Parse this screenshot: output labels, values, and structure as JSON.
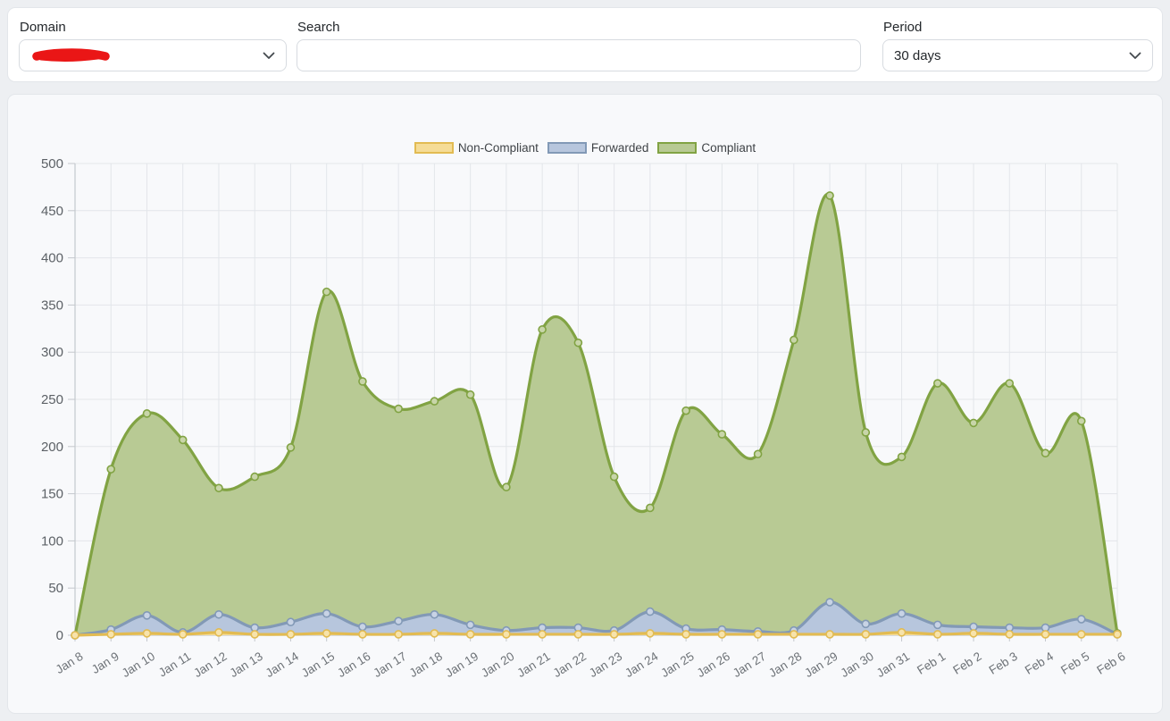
{
  "filters": {
    "domain": {
      "label": "Domain",
      "value": "",
      "redacted": true
    },
    "search": {
      "label": "Search",
      "value": "",
      "placeholder": ""
    },
    "period": {
      "label": "Period",
      "value": "30 days"
    }
  },
  "chart_data": {
    "type": "area",
    "title": "",
    "xlabel": "",
    "ylabel": "",
    "ylim": [
      0,
      500
    ],
    "ytick_step": 50,
    "grid": true,
    "legend_position": "top-center",
    "x": [
      "Jan 8",
      "Jan 9",
      "Jan 10",
      "Jan 11",
      "Jan 12",
      "Jan 13",
      "Jan 14",
      "Jan 15",
      "Jan 16",
      "Jan 17",
      "Jan 18",
      "Jan 19",
      "Jan 20",
      "Jan 21",
      "Jan 22",
      "Jan 23",
      "Jan 24",
      "Jan 25",
      "Jan 26",
      "Jan 27",
      "Jan 28",
      "Jan 29",
      "Jan 30",
      "Jan 31",
      "Feb 1",
      "Feb 2",
      "Feb 3",
      "Feb 4",
      "Feb 5",
      "Feb 6"
    ],
    "series": [
      {
        "name": "Non-Compliant",
        "line_color": "#e2bb52",
        "fill_color": "#f5dc96",
        "marker_fill": "#f7e3ab",
        "values": [
          0,
          1,
          2,
          1,
          3,
          1,
          1,
          2,
          1,
          1,
          2,
          1,
          1,
          1,
          1,
          1,
          2,
          1,
          1,
          1,
          1,
          1,
          1,
          3,
          1,
          2,
          1,
          1,
          1,
          1
        ]
      },
      {
        "name": "Forwarded",
        "line_color": "#8299b6",
        "fill_color": "#b7c6dd",
        "marker_fill": "#c8d3e5",
        "values": [
          0,
          6,
          21,
          3,
          22,
          8,
          14,
          23,
          9,
          15,
          22,
          11,
          5,
          8,
          8,
          5,
          25,
          7,
          6,
          4,
          5,
          35,
          12,
          23,
          11,
          9,
          8,
          8,
          17,
          1
        ]
      },
      {
        "name": "Compliant",
        "line_color": "#81a343",
        "fill_color": "#b8ca94",
        "marker_fill": "#c8d5a9",
        "values": [
          0,
          176,
          235,
          207,
          156,
          168,
          199,
          364,
          269,
          240,
          248,
          255,
          157,
          324,
          310,
          168,
          135,
          238,
          213,
          192,
          313,
          466,
          215,
          189,
          267,
          225,
          267,
          193,
          227,
          2
        ]
      }
    ]
  }
}
